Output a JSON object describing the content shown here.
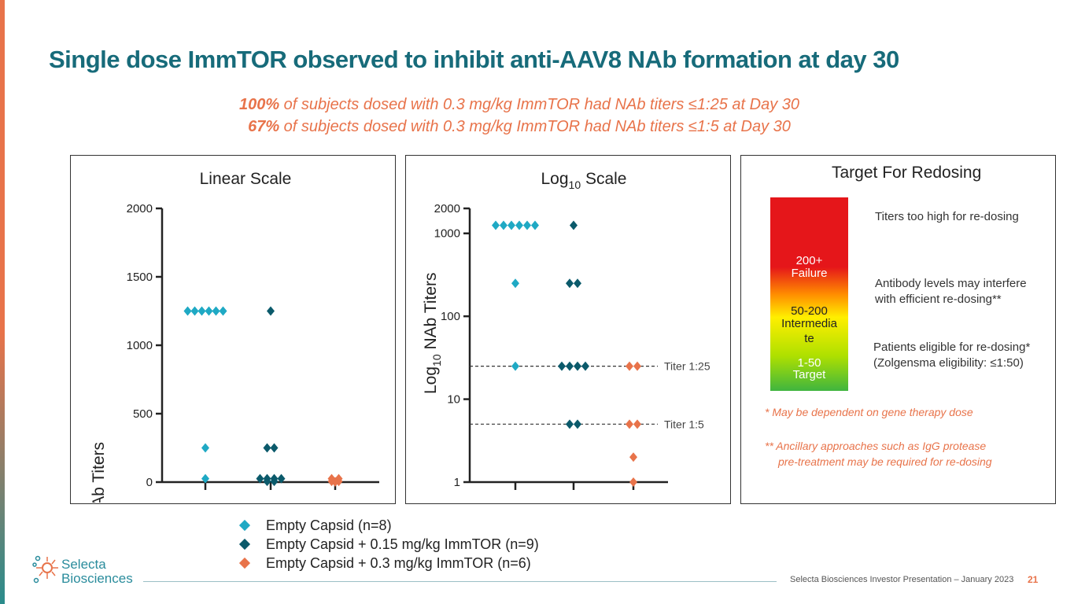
{
  "title": "Single dose ImmTOR observed to inhibit anti-AAV8 NAb formation at day 30",
  "subtitle": {
    "line1_emph": "100%",
    "line1_rest": " of subjects dosed with 0.3 mg/kg ImmTOR had NAb titers ≤1:25 at Day 30",
    "line2_emph": "67%",
    "line2_rest": " of subjects dosed with 0.3 mg/kg ImmTOR had NAb titers ≤1:5 at Day 30"
  },
  "colors": {
    "empty": "#1fa9c4",
    "low": "#0b5a6b",
    "high": "#e8734a",
    "title": "#176b7a"
  },
  "chart_data": [
    {
      "type": "scatter",
      "title": "Linear Scale",
      "ylabel": "NAb Titers",
      "scale": "linear",
      "ylim": [
        0,
        2000
      ],
      "yticks": [
        0,
        500,
        1000,
        1500,
        2000
      ],
      "series": [
        {
          "name": "Empty Capsid (n=8)",
          "group": 1,
          "color": "#1fa9c4",
          "values": [
            1250,
            1250,
            1250,
            1250,
            1250,
            1250,
            250,
            25
          ]
        },
        {
          "name": "Empty Capsid + 0.15 mg/kg ImmTOR (n=9)",
          "group": 2,
          "color": "#0b5a6b",
          "values": [
            1250,
            250,
            250,
            25,
            25,
            25,
            25,
            5,
            5
          ]
        },
        {
          "name": "Empty Capsid + 0.3 mg/kg ImmTOR (n=6)",
          "group": 3,
          "color": "#e8734a",
          "values": [
            25,
            25,
            5,
            5,
            2,
            1
          ]
        }
      ]
    },
    {
      "type": "scatter",
      "title": "Log10 Scale",
      "ylabel": "Log10 NAb Titers",
      "scale": "log",
      "ylim": [
        1,
        2000
      ],
      "yticks": [
        1,
        10,
        100,
        1000,
        2000
      ],
      "reference_lines": [
        {
          "value": 25,
          "label": "Titer 1:25"
        },
        {
          "value": 5,
          "label": "Titer 1:5"
        }
      ],
      "series": [
        {
          "name": "Empty Capsid (n=8)",
          "group": 1,
          "color": "#1fa9c4",
          "values": [
            1250,
            1250,
            1250,
            1250,
            1250,
            1250,
            250,
            25
          ]
        },
        {
          "name": "Empty Capsid + 0.15 mg/kg ImmTOR (n=9)",
          "group": 2,
          "color": "#0b5a6b",
          "values": [
            1250,
            250,
            250,
            25,
            25,
            25,
            25,
            5,
            5
          ]
        },
        {
          "name": "Empty Capsid + 0.3 mg/kg ImmTOR (n=6)",
          "group": 3,
          "color": "#e8734a",
          "values": [
            25,
            25,
            5,
            5,
            2,
            1
          ]
        }
      ]
    }
  ],
  "charts": {
    "linear_title": "Linear Scale",
    "log_title_prefix": "Log",
    "log_title_sub": "10",
    "log_title_suffix": " Scale",
    "linear_ylabel": "NAb Titers",
    "log_ylabel_prefix": "Log",
    "log_ylabel_sub": "10",
    "log_ylabel_suffix": " NAb Titers"
  },
  "target": {
    "title": "Target For Redosing",
    "failure_value": "200+",
    "failure_label": "Failure",
    "intermediate_value": "50-200",
    "intermediate_label_1": "Intermedia",
    "intermediate_label_2": "te",
    "target_value": "1-50",
    "target_label": "Target",
    "note_high": "Titers too high for re-dosing",
    "note_mid_1": "Antibody levels may interfere",
    "note_mid_2": "with efficient re-dosing**",
    "note_low_1": "Patients eligible for re-dosing*",
    "note_low_2": "(Zolgensma eligibility: ≤1:50)",
    "footnote_1": "*  May be dependent on gene therapy dose",
    "footnote_2a": "** Ancillary approaches such as IgG protease",
    "footnote_2b": "pre-treatment may be required for re-dosing"
  },
  "legend": [
    {
      "label": "Empty Capsid (n=8)",
      "color": "#1fa9c4"
    },
    {
      "label": "Empty Capsid + 0.15 mg/kg ImmTOR (n=9)",
      "color": "#0b5a6b"
    },
    {
      "label": "Empty Capsid + 0.3 mg/kg ImmTOR (n=6)",
      "color": "#e8734a"
    }
  ],
  "footer": {
    "logo_line1": "Selecta",
    "logo_line2": "Biosciences",
    "text": "Selecta Biosciences Investor Presentation – January 2023",
    "page": "21"
  }
}
